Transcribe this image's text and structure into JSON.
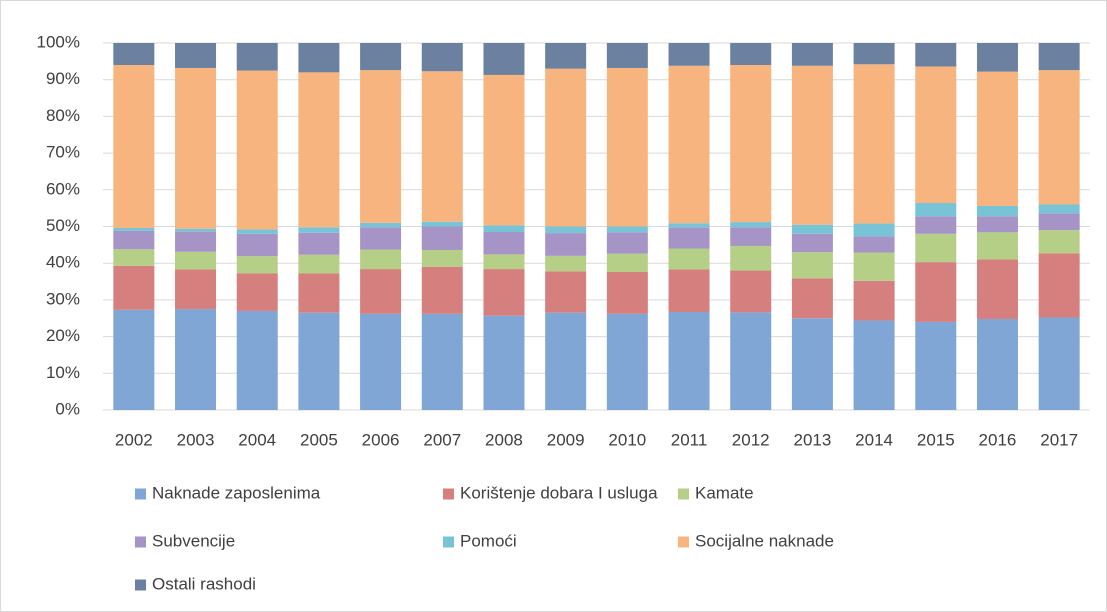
{
  "chart_data": {
    "type": "stacked_bar",
    "categories": [
      "2002",
      "2003",
      "2004",
      "2005",
      "2006",
      "2007",
      "2008",
      "2009",
      "2010",
      "2011",
      "2012",
      "2013",
      "2014",
      "2015",
      "2016",
      "2017"
    ],
    "series": [
      {
        "name": "Naknade zaposlenima",
        "color": "#7fa6d4",
        "values": [
          27.3,
          27.5,
          27.0,
          26.5,
          26.2,
          26.2,
          25.7,
          26.5,
          26.2,
          26.7,
          26.6,
          25.0,
          24.4,
          24.0,
          24.8,
          25.2
        ]
      },
      {
        "name": "Korištenje dobara I usluga",
        "color": "#d67f7f",
        "values": [
          12.0,
          10.8,
          10.2,
          10.7,
          12.2,
          12.8,
          12.7,
          11.3,
          11.4,
          11.6,
          11.4,
          10.9,
          10.8,
          16.3,
          16.2,
          17.5
        ]
      },
      {
        "name": "Kamate",
        "color": "#b6cf86",
        "values": [
          4.5,
          4.8,
          4.7,
          5.1,
          5.3,
          4.6,
          4.0,
          4.2,
          5.0,
          5.7,
          6.7,
          7.1,
          7.7,
          7.7,
          7.4,
          6.3
        ]
      },
      {
        "name": "Subvencije",
        "color": "#a694c6",
        "values": [
          5.0,
          5.5,
          6.1,
          6.0,
          6.1,
          6.4,
          6.1,
          6.2,
          5.8,
          5.7,
          5.1,
          5.0,
          4.4,
          4.8,
          4.4,
          4.6
        ]
      },
      {
        "name": "Pomoći",
        "color": "#79c3d7",
        "values": [
          0.8,
          0.8,
          1.2,
          1.5,
          1.2,
          1.3,
          1.8,
          1.8,
          1.6,
          1.2,
          1.4,
          2.5,
          3.5,
          3.6,
          2.8,
          2.4
        ]
      },
      {
        "name": "Socijalne naknade",
        "color": "#f8b47e",
        "values": [
          44.4,
          43.8,
          43.3,
          42.2,
          41.6,
          41.0,
          41.0,
          43.0,
          43.2,
          42.9,
          42.8,
          43.3,
          43.4,
          37.2,
          36.6,
          36.6
        ]
      },
      {
        "name": "Ostali rashodi",
        "color": "#6c809f",
        "values": [
          6.0,
          6.8,
          7.5,
          8.0,
          7.4,
          7.7,
          8.7,
          7.0,
          6.8,
          6.2,
          6.0,
          6.2,
          5.8,
          6.4,
          7.8,
          7.4
        ]
      }
    ],
    "ylim": [
      0,
      100
    ],
    "yticks": [
      {
        "value": 0,
        "label": "0%"
      },
      {
        "value": 10,
        "label": "10%"
      },
      {
        "value": 20,
        "label": "20%"
      },
      {
        "value": 30,
        "label": "30%"
      },
      {
        "value": 40,
        "label": "40%"
      },
      {
        "value": 50,
        "label": "50%"
      },
      {
        "value": 60,
        "label": "60%"
      },
      {
        "value": 70,
        "label": "70%"
      },
      {
        "value": 80,
        "label": "80%"
      },
      {
        "value": 90,
        "label": "90%"
      },
      {
        "value": 100,
        "label": "100%"
      }
    ],
    "grid": true,
    "legend": "bottom"
  }
}
